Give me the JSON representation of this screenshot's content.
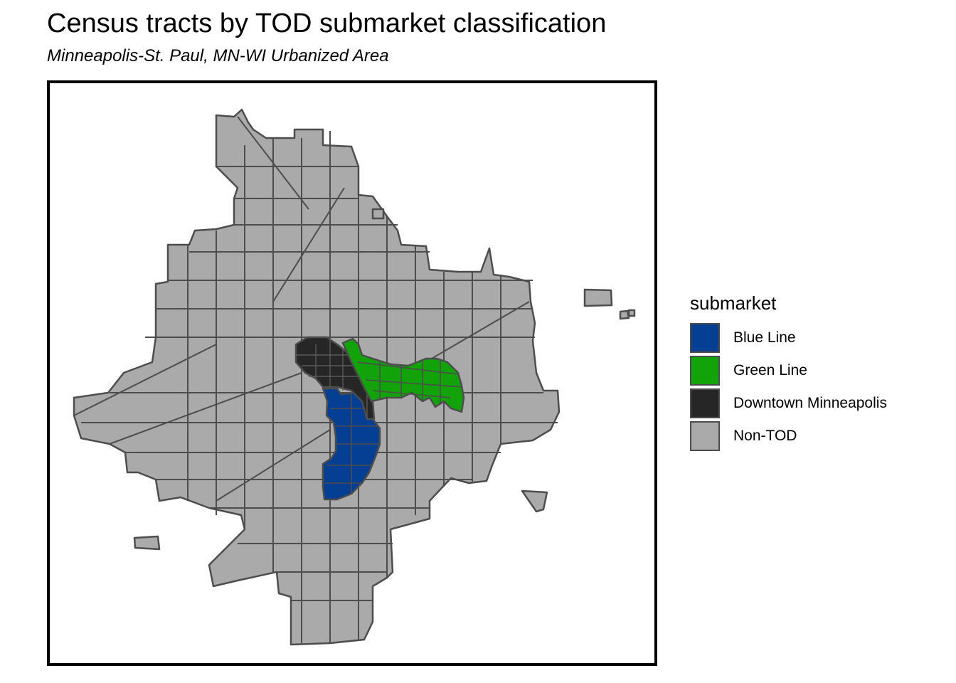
{
  "title": "Census tracts by TOD submarket classification",
  "subtitle": "Minneapolis-St. Paul, MN-WI Urbanized Area",
  "legend": {
    "title": "submarket",
    "items": [
      {
        "label": "Blue Line",
        "color": "#053f93"
      },
      {
        "label": "Green Line",
        "color": "#12a20a"
      },
      {
        "label": "Downtown Minneapolis",
        "color": "#262626"
      },
      {
        "label": "Non-TOD",
        "color": "#aaaaaa"
      }
    ]
  },
  "colors": {
    "non_tod": "#aaaaaa",
    "tract_border": "#4d4d4d",
    "frame": "#000000"
  }
}
